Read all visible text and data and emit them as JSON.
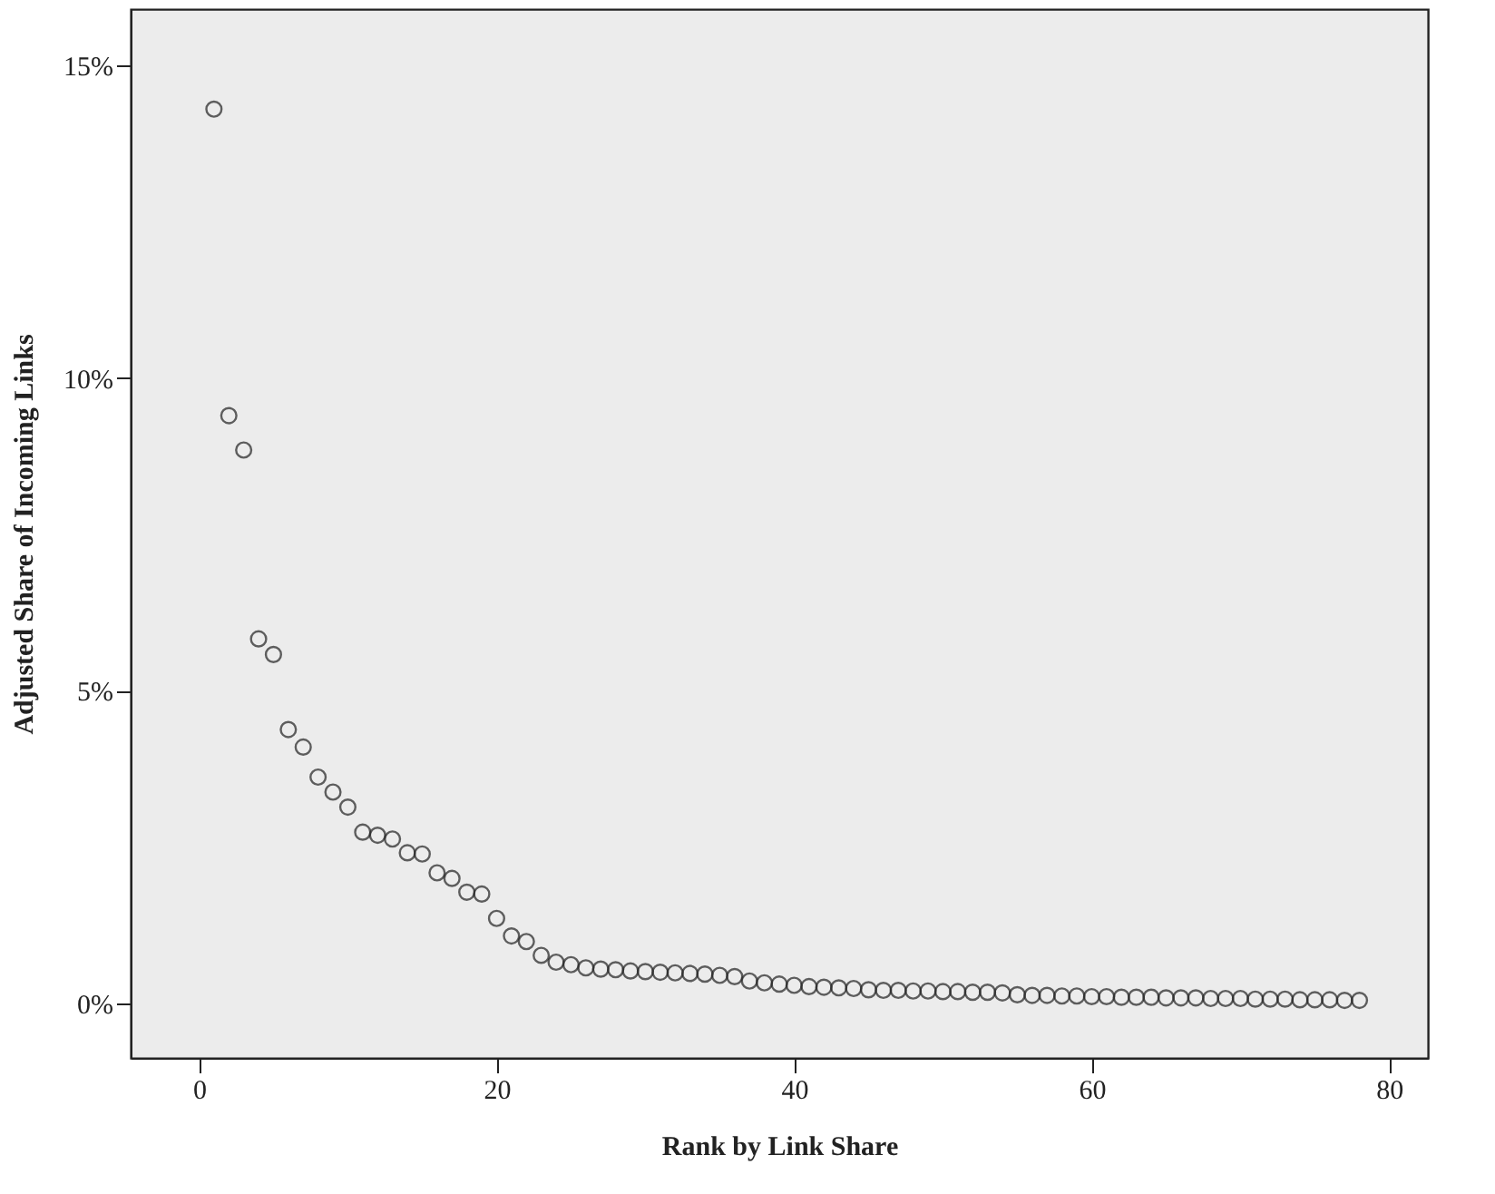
{
  "chart_data": {
    "type": "scatter",
    "xlabel": "Rank by Link Share",
    "ylabel": "Adjusted Share of Incoming Links",
    "x": [
      1,
      2,
      3,
      4,
      5,
      6,
      7,
      8,
      9,
      10,
      11,
      12,
      13,
      14,
      15,
      16,
      17,
      18,
      19,
      20,
      21,
      22,
      23,
      24,
      25,
      26,
      27,
      28,
      29,
      30,
      31,
      32,
      33,
      34,
      35,
      36,
      37,
      38,
      39,
      40,
      41,
      42,
      43,
      44,
      45,
      46,
      47,
      48,
      49,
      50,
      51,
      52,
      53,
      54,
      55,
      56,
      57,
      58,
      59,
      60,
      61,
      62,
      63,
      64,
      65,
      66,
      67,
      68,
      69,
      70,
      71,
      72,
      73,
      74,
      75,
      76,
      77,
      78
    ],
    "series": [
      {
        "color": "#222222",
        "values": [
          14.3,
          9.4,
          8.85,
          5.83,
          5.58,
          4.38,
          4.1,
          3.62,
          3.38,
          3.14,
          2.74,
          2.69,
          2.63,
          2.41,
          2.39,
          2.09,
          2.0,
          1.78,
          1.75,
          1.36,
          1.08,
          0.99,
          0.77,
          0.66,
          0.62,
          0.57,
          0.55,
          0.54,
          0.52,
          0.51,
          0.5,
          0.49,
          0.48,
          0.47,
          0.45,
          0.43,
          0.36,
          0.33,
          0.31,
          0.29,
          0.27,
          0.26,
          0.25,
          0.24,
          0.22,
          0.21,
          0.21,
          0.2,
          0.2,
          0.19,
          0.19,
          0.18,
          0.18,
          0.17,
          0.14,
          0.13,
          0.13,
          0.12,
          0.12,
          0.11,
          0.11,
          0.1,
          0.1,
          0.1,
          0.09,
          0.09,
          0.09,
          0.08,
          0.08,
          0.08,
          0.07,
          0.07,
          0.07,
          0.06,
          0.06,
          0.06,
          0.05,
          0.05
        ]
      }
    ],
    "xlim": [
      -4.6,
      82.6
    ],
    "xticks": [
      0,
      20,
      40,
      60,
      80
    ],
    "ylim": [
      -0.87,
      15.9
    ],
    "yticks": [
      {
        "value": 0,
        "label": "0%"
      },
      {
        "value": 5,
        "label": "5%"
      },
      {
        "value": 10,
        "label": "10%"
      },
      {
        "value": 15,
        "label": "15%"
      }
    ],
    "marker": "circle",
    "grid": false,
    "legend": false
  }
}
